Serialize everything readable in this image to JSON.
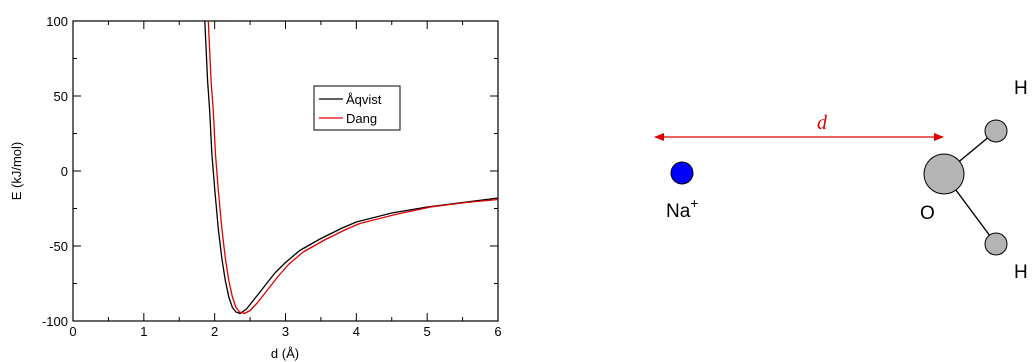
{
  "chart_data": {
    "type": "line",
    "title": "",
    "xlabel": "d (Å)",
    "ylabel": "E (kJ/mol)",
    "xlim": [
      0,
      6
    ],
    "ylim": [
      -100,
      100
    ],
    "xticks": [
      "0",
      "1",
      "2",
      "3",
      "4",
      "5",
      "6"
    ],
    "yticks": [
      "-100",
      "-50",
      "0",
      "50",
      "100"
    ],
    "xtick_values": [
      0,
      1,
      2,
      3,
      4,
      5,
      6
    ],
    "ytick_values": [
      -100,
      -50,
      0,
      50,
      100
    ],
    "grid": false,
    "legend_position": "upper-right",
    "series": [
      {
        "name": "Åqvist",
        "color": "#000000",
        "x": [
          1.86,
          1.88,
          1.9,
          1.93,
          1.96,
          2.0,
          2.05,
          2.1,
          2.15,
          2.2,
          2.25,
          2.3,
          2.36,
          2.45,
          2.55,
          2.7,
          2.85,
          3.0,
          3.2,
          3.5,
          3.8,
          4.0,
          4.5,
          5.0,
          5.5,
          6.0
        ],
        "y": [
          100,
          80,
          60,
          40,
          12,
          -12,
          -38,
          -58,
          -73,
          -84,
          -91,
          -94,
          -95,
          -92,
          -86,
          -77,
          -68,
          -61,
          -53,
          -45,
          -38,
          -34,
          -28,
          -24,
          -21,
          -18
        ]
      },
      {
        "name": "Dang",
        "color": "#e00000",
        "x": [
          1.91,
          1.93,
          1.95,
          1.98,
          2.01,
          2.05,
          2.1,
          2.15,
          2.2,
          2.25,
          2.3,
          2.35,
          2.42,
          2.5,
          2.6,
          2.75,
          2.9,
          3.05,
          3.25,
          3.55,
          3.85,
          4.05,
          4.55,
          5.05,
          5.55,
          6.0
        ],
        "y": [
          100,
          80,
          60,
          40,
          12,
          -12,
          -38,
          -58,
          -73,
          -84,
          -91,
          -94,
          -95,
          -93,
          -88,
          -79,
          -70,
          -62,
          -54,
          -46,
          -39,
          -35,
          -29,
          -24,
          -21,
          -19
        ]
      }
    ]
  },
  "diagram": {
    "distance_label": "d",
    "ion_label": "Na",
    "ion_charge": "+",
    "oxygen_label": "O",
    "hydrogen_top_label": "H",
    "hydrogen_bottom_label": "H",
    "ion_color": "#0000ff",
    "atom_color": "#b4b4b4",
    "arrow_color": "#e00000"
  }
}
